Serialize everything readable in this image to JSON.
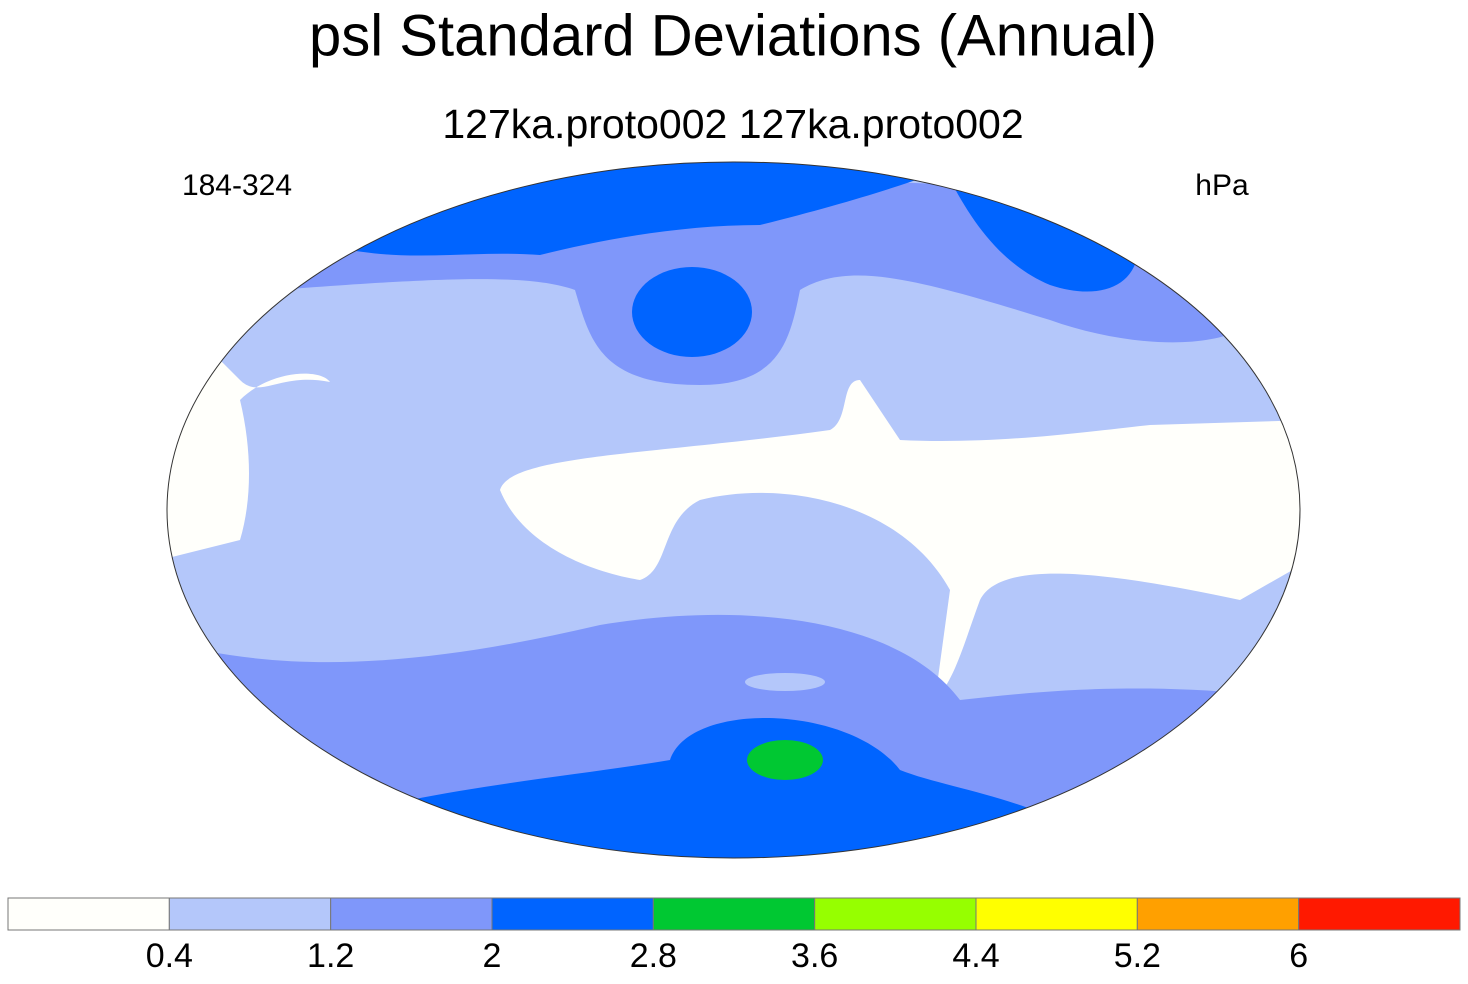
{
  "title": "psl Standard Deviations (Annual)",
  "subtitle": "127ka.proto002  127ka.proto002",
  "left_label": "184-324",
  "right_label": "hPa",
  "colorbar": {
    "levels": [
      0.4,
      1.2,
      2,
      2.8,
      3.6,
      4.4,
      5.2,
      6
    ],
    "colors": [
      "#fffffb",
      "#b4c7fa",
      "#7f97fa",
      "#0064ff",
      "#00c832",
      "#96ff00",
      "#ffff00",
      "#ffa000",
      "#ff1900"
    ]
  }
}
